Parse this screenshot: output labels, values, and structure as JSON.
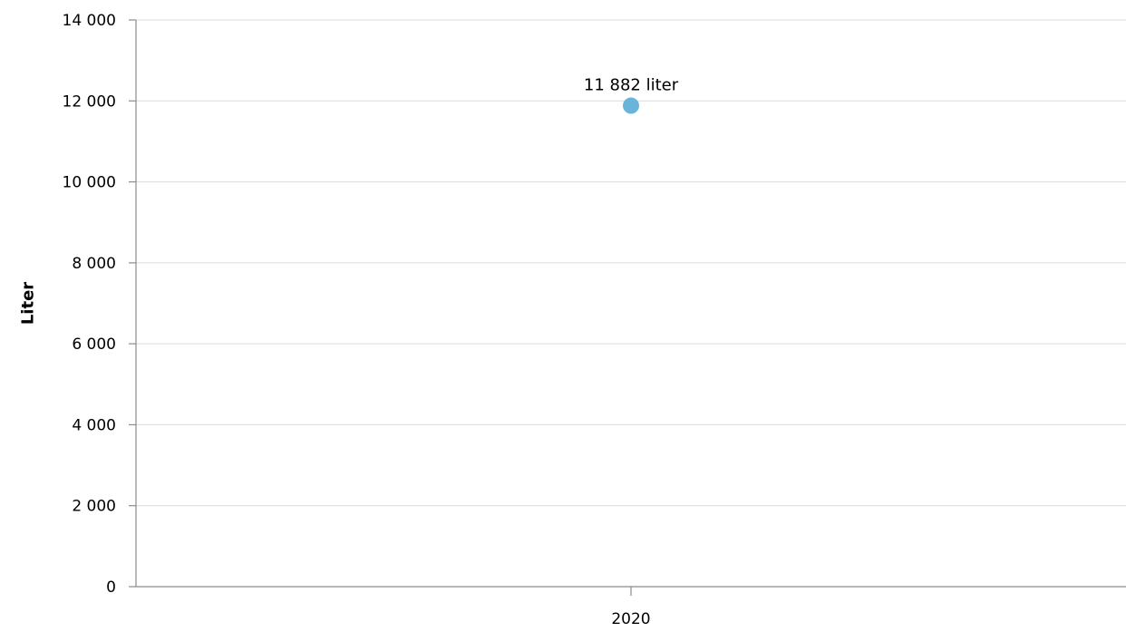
{
  "chart_data": {
    "type": "scatter",
    "categories": [
      "2020"
    ],
    "series": [
      {
        "values": [
          11882
        ],
        "color": "#6ab4dc",
        "data_labels": [
          "11 882 liter"
        ]
      }
    ],
    "ylabel": "Liter",
    "xlabel": "",
    "ylim": [
      0,
      14000
    ],
    "yticks": [
      {
        "value": 0,
        "label": "0"
      },
      {
        "value": 2000,
        "label": "2 000"
      },
      {
        "value": 4000,
        "label": "4 000"
      },
      {
        "value": 6000,
        "label": "6 000"
      },
      {
        "value": 8000,
        "label": "8 000"
      },
      {
        "value": 10000,
        "label": "10 000"
      },
      {
        "value": 12000,
        "label": "12 000"
      },
      {
        "value": 14000,
        "label": "14 000"
      }
    ],
    "grid": true,
    "legend": "none"
  }
}
